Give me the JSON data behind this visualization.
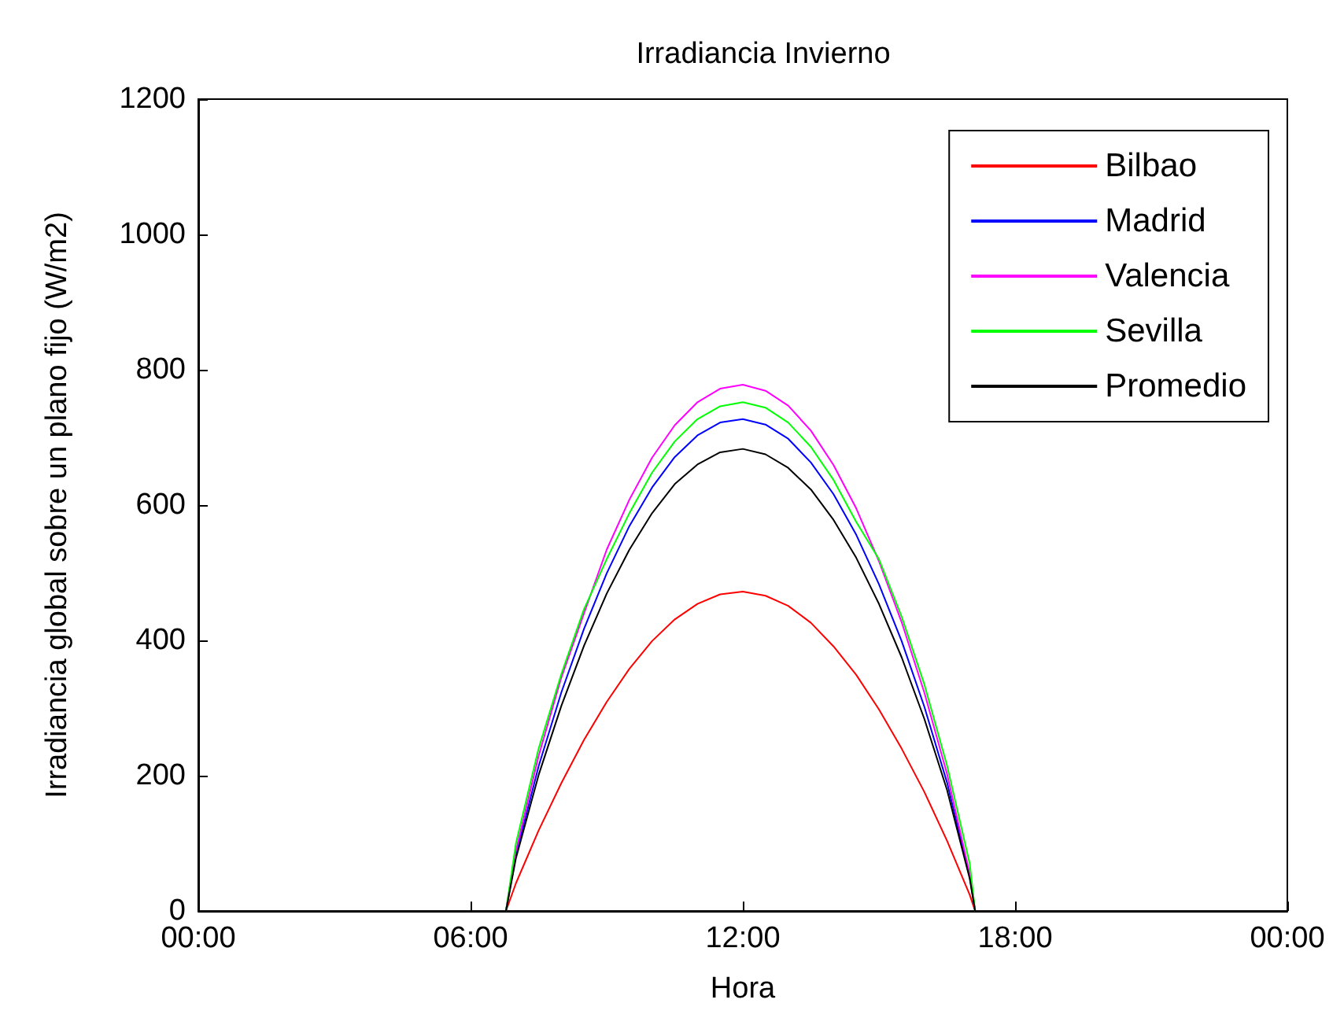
{
  "chart_data": {
    "type": "line",
    "title": "Irradiancia Invierno",
    "xlabel": "Hora",
    "ylabel": "Irradiancia global sobre un plano fijo (W/m2)",
    "x": [
      0,
      6.78,
      7,
      7.5,
      8,
      8.5,
      9,
      9.5,
      10,
      10.5,
      11,
      11.5,
      12,
      12.5,
      13,
      13.5,
      14,
      14.5,
      15,
      15.5,
      16,
      16.5,
      17,
      17.12,
      24
    ],
    "series": [
      {
        "name": "Bilbao",
        "color": "#ff0000",
        "values": [
          0,
          0,
          41,
          119,
          189,
          253,
          309,
          358,
          399,
          431,
          454,
          468,
          472,
          466,
          451,
          426,
          391,
          349,
          298,
          240,
          176,
          104,
          24,
          0,
          0
        ]
      },
      {
        "name": "Madrid",
        "color": "#0000ff",
        "values": [
          0,
          0,
          83,
          214,
          323,
          417,
          499,
          569,
          626,
          671,
          703,
          722,
          727,
          719,
          698,
          663,
          616,
          556,
          483,
          399,
          302,
          190,
          51,
          0,
          0
        ]
      },
      {
        "name": "Valencia",
        "color": "#ff00ff",
        "values": [
          0,
          0,
          89,
          229,
          345,
          440,
          534,
          608,
          670,
          718,
          752,
          772,
          778,
          769,
          747,
          710,
          659,
          595,
          517,
          427,
          323,
          203,
          55,
          0,
          0
        ]
      },
      {
        "name": "Sevilla",
        "color": "#00ff00",
        "values": [
          0,
          0,
          100,
          240,
          350,
          446,
          520,
          588,
          648,
          694,
          727,
          746,
          752,
          744,
          722,
          686,
          637,
          575,
          520,
          435,
          335,
          215,
          70,
          0,
          0
        ]
      },
      {
        "name": "Promedio",
        "color": "#000000",
        "values": [
          0,
          0,
          78,
          201,
          303,
          392,
          469,
          534,
          588,
          631,
          660,
          678,
          683,
          675,
          655,
          623,
          578,
          522,
          454,
          375,
          284,
          179,
          48,
          0,
          0
        ]
      }
    ],
    "xlim": [
      0,
      24
    ],
    "xticks": [
      {
        "value": 0,
        "label": "00:00"
      },
      {
        "value": 6,
        "label": "06:00"
      },
      {
        "value": 12,
        "label": "12:00"
      },
      {
        "value": 18,
        "label": "18:00"
      },
      {
        "value": 24,
        "label": "00:00"
      }
    ],
    "ylim": [
      0,
      1200
    ],
    "yticks": [
      0,
      200,
      400,
      600,
      800,
      1000,
      1200
    ],
    "legend": "top right",
    "marker": "none",
    "line_style": "solid"
  }
}
